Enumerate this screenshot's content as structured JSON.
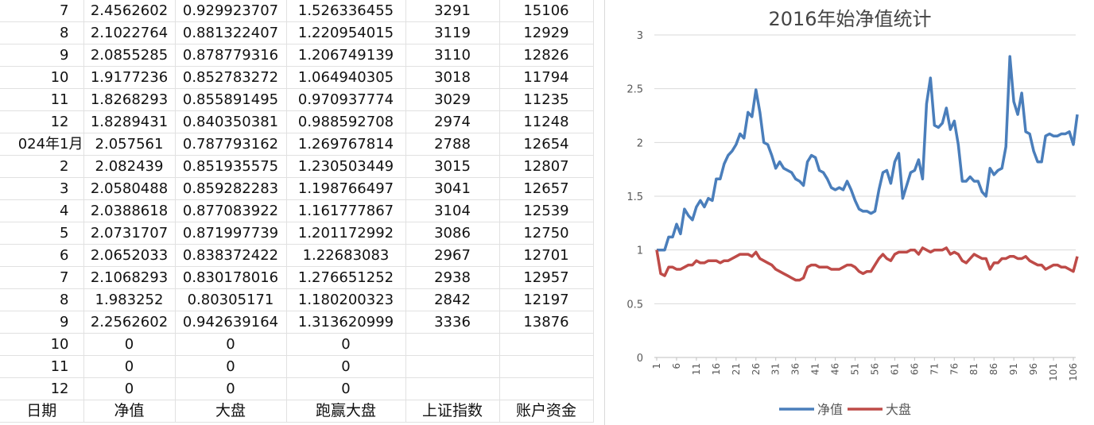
{
  "sheet": {
    "headers": [
      "日期",
      "净值",
      "大盘",
      "跑赢大盘",
      "上证指数",
      "账户资金"
    ],
    "rows": [
      [
        "7",
        "2.4562602",
        "0.929923707",
        "1.526336455",
        "3291",
        "15106"
      ],
      [
        "8",
        "2.1022764",
        "0.881322407",
        "1.220954015",
        "3119",
        "12929"
      ],
      [
        "9",
        "2.0855285",
        "0.878779316",
        "1.206749139",
        "3110",
        "12826"
      ],
      [
        "10",
        "1.9177236",
        "0.852783272",
        "1.064940305",
        "3018",
        "11794"
      ],
      [
        "11",
        "1.8268293",
        "0.855891495",
        "0.970937774",
        "3029",
        "11235"
      ],
      [
        "12",
        "1.8289431",
        "0.840350381",
        "0.988592708",
        "2974",
        "11248"
      ],
      [
        "024年1月",
        "2.057561",
        "0.787793162",
        "1.269767814",
        "2788",
        "12654"
      ],
      [
        "2",
        "2.082439",
        "0.851935575",
        "1.230503449",
        "3015",
        "12807"
      ],
      [
        "3",
        "2.0580488",
        "0.859282283",
        "1.198766497",
        "3041",
        "12657"
      ],
      [
        "4",
        "2.0388618",
        "0.877083922",
        "1.161777867",
        "3104",
        "12539"
      ],
      [
        "5",
        "2.0731707",
        "0.871997739",
        "1.201172992",
        "3086",
        "12750"
      ],
      [
        "6",
        "2.0652033",
        "0.838372422",
        "1.22683083",
        "2967",
        "12701"
      ],
      [
        "7",
        "2.1068293",
        "0.830178016",
        "1.276651252",
        "2938",
        "12957"
      ],
      [
        "8",
        "1.983252",
        "0.80305171",
        "1.180200323",
        "2842",
        "12197"
      ],
      [
        "9",
        "2.2562602",
        "0.942639164",
        "1.313620999",
        "3336",
        "13876"
      ],
      [
        "10",
        "0",
        "0",
        "0",
        "",
        ""
      ],
      [
        "11",
        "0",
        "0",
        "0",
        "",
        ""
      ],
      [
        "12",
        "0",
        "0",
        "0",
        "",
        ""
      ]
    ]
  },
  "chart_data": {
    "type": "line",
    "title": "2016年始净值统计",
    "ylim": [
      0,
      3
    ],
    "yticks": [
      "0",
      "0.5",
      "1",
      "1.5",
      "2",
      "2.5",
      "3"
    ],
    "xticks": [
      "1",
      "6",
      "11",
      "16",
      "21",
      "26",
      "31",
      "36",
      "41",
      "46",
      "51",
      "56",
      "61",
      "66",
      "71",
      "76",
      "81",
      "86",
      "91",
      "96",
      "101",
      "106"
    ],
    "legend_position": "bottom",
    "x_count": 106,
    "series": [
      {
        "name": "净值",
        "color": "#4a7ebb",
        "values": [
          1.0,
          1.0,
          1.0,
          1.12,
          1.12,
          1.24,
          1.15,
          1.38,
          1.32,
          1.28,
          1.4,
          1.46,
          1.4,
          1.48,
          1.46,
          1.66,
          1.66,
          1.8,
          1.88,
          1.92,
          1.98,
          2.08,
          2.04,
          2.28,
          2.24,
          2.49,
          2.28,
          2.0,
          1.98,
          1.88,
          1.76,
          1.82,
          1.76,
          1.74,
          1.72,
          1.66,
          1.64,
          1.6,
          1.82,
          1.88,
          1.86,
          1.74,
          1.72,
          1.66,
          1.58,
          1.56,
          1.58,
          1.56,
          1.64,
          1.56,
          1.46,
          1.38,
          1.36,
          1.36,
          1.34,
          1.36,
          1.56,
          1.72,
          1.74,
          1.62,
          1.82,
          1.9,
          1.48,
          1.6,
          1.72,
          1.74,
          1.84,
          1.66,
          2.36,
          2.6,
          2.16,
          2.14,
          2.18,
          2.32,
          2.12,
          2.2,
          1.98,
          1.64,
          1.64,
          1.68,
          1.64,
          1.64,
          1.54,
          1.5,
          1.76,
          1.7,
          1.74,
          1.76,
          1.96,
          2.8,
          2.38,
          2.26,
          2.46,
          2.1,
          2.08,
          1.92,
          1.82,
          1.82,
          2.06,
          2.08,
          2.06,
          2.06,
          2.08,
          2.08,
          2.1,
          1.98,
          2.26
        ]
      },
      {
        "name": "大盘",
        "color": "#be4b48",
        "values": [
          1.0,
          0.78,
          0.76,
          0.84,
          0.84,
          0.82,
          0.82,
          0.84,
          0.86,
          0.86,
          0.9,
          0.88,
          0.88,
          0.9,
          0.9,
          0.9,
          0.88,
          0.9,
          0.9,
          0.92,
          0.94,
          0.96,
          0.96,
          0.96,
          0.94,
          0.98,
          0.92,
          0.9,
          0.88,
          0.86,
          0.82,
          0.8,
          0.78,
          0.76,
          0.74,
          0.72,
          0.72,
          0.74,
          0.84,
          0.86,
          0.86,
          0.84,
          0.84,
          0.84,
          0.82,
          0.82,
          0.82,
          0.84,
          0.86,
          0.86,
          0.84,
          0.8,
          0.78,
          0.8,
          0.8,
          0.86,
          0.92,
          0.96,
          0.92,
          0.9,
          0.96,
          0.98,
          0.98,
          0.98,
          1.0,
          1.0,
          0.96,
          1.02,
          1.0,
          0.98,
          1.0,
          1.0,
          1.0,
          1.02,
          0.96,
          0.98,
          0.96,
          0.9,
          0.88,
          0.92,
          0.96,
          0.94,
          0.92,
          0.92,
          0.82,
          0.88,
          0.88,
          0.92,
          0.92,
          0.94,
          0.94,
          0.92,
          0.92,
          0.94,
          0.9,
          0.88,
          0.86,
          0.86,
          0.82,
          0.84,
          0.86,
          0.86,
          0.84,
          0.84,
          0.82,
          0.8,
          0.94
        ]
      }
    ]
  }
}
